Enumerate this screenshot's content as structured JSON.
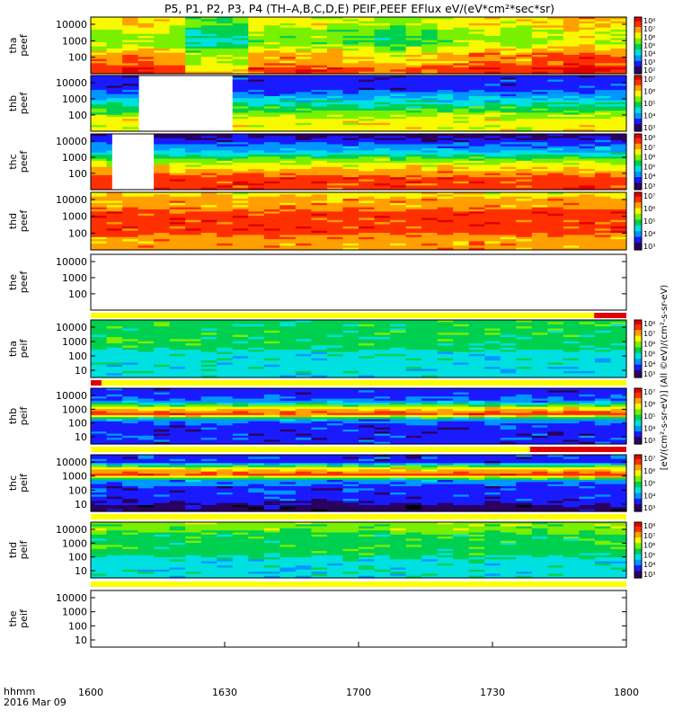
{
  "title": "P5, P1, P2, P3, P4 (TH–A,B,C,D,E) PEIF,PEEF EFlux eV/(eV*cm²*sec*sr)",
  "time_label_line1": "hhmm",
  "time_label_line2": "2016 Mar 09",
  "x_ticks": [
    "1600",
    "1630",
    "1700",
    "1730",
    "1800"
  ],
  "right_axis_label": "[eV/(cm²-s-sr-eV)] (All ©eV)/(cm²-s-sr-eV)",
  "colors": {
    "palette": [
      "#000000",
      "#2a0060",
      "#1a1aff",
      "#0096ff",
      "#00e0e0",
      "#00d050",
      "#78f000",
      "#f8f800",
      "#ffa000",
      "#ff3000",
      "#e00000"
    ],
    "flag_yellow": "#ffff00",
    "flag_red": "#e00000"
  },
  "chart_data": [
    {
      "type": "heatmap",
      "panel": "tha peef",
      "ylabel": "tha\npeef",
      "yticks": [
        "10000",
        "1000",
        "100"
      ],
      "cbar_ticks": [
        "10⁸",
        "10⁷",
        "10⁶",
        "10⁵",
        "10⁴",
        "10³",
        "10²"
      ],
      "profile": [
        7,
        7,
        6,
        6,
        6,
        7,
        8,
        8,
        9
      ],
      "time_variation": [
        0,
        0.5,
        0,
        -1.5,
        -1.5,
        0,
        0,
        0,
        -0.5,
        -1,
        -0.5,
        0,
        0.5,
        0,
        0.5,
        1,
        0.5
      ]
    },
    {
      "type": "heatmap",
      "panel": "thb peef",
      "ylabel": "thb\npeef",
      "yticks": [
        "10000",
        "1000",
        "100"
      ],
      "cbar_ticks": [
        "10⁷",
        "10⁶",
        "10⁵",
        "10⁴",
        "10³"
      ],
      "gap": [
        0.09,
        0.25
      ],
      "profile": [
        2,
        2,
        2,
        3,
        4,
        5,
        6,
        7,
        7
      ]
    },
    {
      "type": "heatmap",
      "panel": "thc peef",
      "ylabel": "thc\npeef",
      "yticks": [
        "10000",
        "1000",
        "100"
      ],
      "cbar_ticks": [
        "10⁸",
        "10⁷",
        "10⁶",
        "10⁵",
        "10⁴",
        "10³"
      ],
      "gap": [
        0.04,
        0.11
      ],
      "profile": [
        1,
        2,
        3,
        4,
        6,
        7,
        8,
        9,
        9
      ]
    },
    {
      "type": "heatmap",
      "panel": "thd peef",
      "ylabel": "thd\npeef",
      "yticks": [
        "10000",
        "1000",
        "100"
      ],
      "cbar_ticks": [
        "10⁷",
        "10⁶",
        "10⁵",
        "10⁴",
        "10³"
      ],
      "profile": [
        7,
        8,
        8,
        9,
        9,
        9,
        9,
        8,
        8
      ]
    },
    {
      "type": "heatmap",
      "panel": "the peef",
      "ylabel": "the\npeef",
      "yticks": [
        "10000",
        "1000",
        "100"
      ],
      "empty": true,
      "flags": [
        {
          "from": 0,
          "to": 0.94,
          "color": "yellow"
        },
        {
          "from": 0.94,
          "to": 1,
          "color": "red"
        }
      ]
    },
    {
      "type": "heatmap",
      "panel": "tha peif",
      "ylabel": "tha\npeif",
      "yticks": [
        "10000",
        "1000",
        "100",
        "10"
      ],
      "cbar_ticks": [
        "10⁸",
        "10⁷",
        "10⁶",
        "10⁵",
        "10⁴",
        "10³"
      ],
      "profile": [
        5,
        5,
        5,
        5,
        5,
        4,
        4,
        4,
        4
      ]
    },
    {
      "type": "heatmap",
      "panel": "thb peif",
      "ylabel": "thb\npeif",
      "yticks": [
        "10000",
        "1000",
        "100",
        "10"
      ],
      "cbar_ticks": [
        "10⁷",
        "10⁶",
        "10⁵",
        "10⁴",
        "10³"
      ],
      "profile": [
        2,
        2,
        3,
        7,
        9,
        3,
        2,
        2,
        2
      ],
      "flags": [
        {
          "from": 0,
          "to": 0.02,
          "color": "red"
        },
        {
          "from": 0.02,
          "to": 1,
          "color": "yellow"
        }
      ]
    },
    {
      "type": "heatmap",
      "panel": "thc peif",
      "ylabel": "thc\npeif",
      "yticks": [
        "10000",
        "1000",
        "100",
        "10"
      ],
      "cbar_ticks": [
        "10⁷",
        "10⁶",
        "10⁵",
        "10⁴",
        "10³"
      ],
      "profile": [
        2,
        2,
        7,
        9,
        3,
        2,
        2,
        2,
        1
      ],
      "flags": [
        {
          "from": 0,
          "to": 0.82,
          "color": "yellow"
        },
        {
          "from": 0.82,
          "to": 1,
          "color": "red"
        }
      ]
    },
    {
      "type": "heatmap",
      "panel": "thd peif",
      "ylabel": "thd\npeif",
      "yticks": [
        "10000",
        "1000",
        "100",
        "10"
      ],
      "cbar_ticks": [
        "10⁸",
        "10⁷",
        "10⁶",
        "10⁵",
        "10⁴",
        "10³"
      ],
      "profile": [
        6,
        6,
        5,
        5,
        5,
        5,
        4,
        4,
        4
      ]
    },
    {
      "type": "heatmap",
      "panel": "the peif",
      "ylabel": "the\npeif",
      "yticks": [
        "10000",
        "1000",
        "100",
        "10"
      ],
      "empty": true
    }
  ]
}
